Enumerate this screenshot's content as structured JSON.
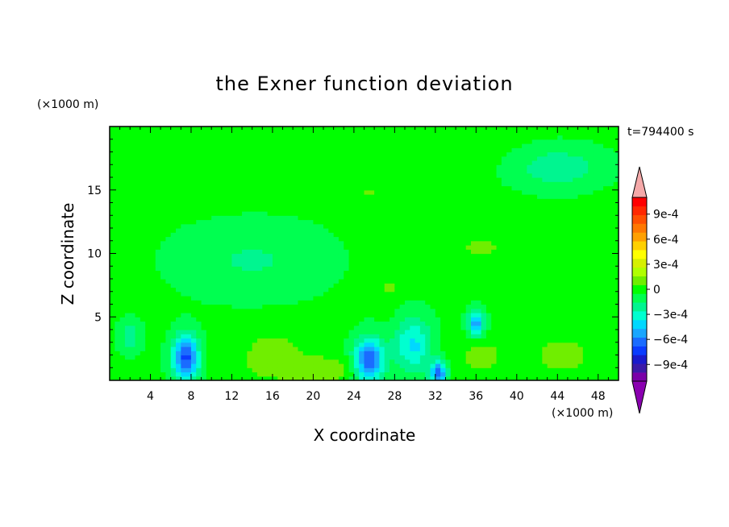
{
  "chart_data": {
    "type": "heatmap",
    "title": "the Exner function deviation",
    "xlabel": "X coordinate",
    "ylabel": "Z coordinate",
    "x_unit": "(×1000 m)",
    "y_unit": "(×1000 m)",
    "time_label": "t=794400 s",
    "xlim": [
      0,
      50
    ],
    "ylim": [
      0,
      20
    ],
    "x_ticks": [
      4,
      8,
      12,
      16,
      20,
      24,
      28,
      32,
      36,
      40,
      44,
      48
    ],
    "y_ticks": [
      5,
      10,
      15
    ],
    "colorbar": {
      "min": -0.0011,
      "max": 0.0011,
      "step": 0.0001,
      "tick_values": [
        0.0009,
        0.0006,
        0.0003,
        0,
        -0.0003,
        -0.0006,
        -0.0009
      ],
      "tick_labels": [
        "9e-4",
        "6e-4",
        "3e-4",
        "0",
        "−3e-4",
        "−6e-4",
        "−9e-4"
      ],
      "colors": [
        "#7a00a8",
        "#3b1aa8",
        "#1a1acc",
        "#0a3cff",
        "#1a6cff",
        "#19a6ff",
        "#00d8ff",
        "#00ffd0",
        "#00f590",
        "#00ff50",
        "#00ff00",
        "#70ee00",
        "#b0ff00",
        "#d6f000",
        "#ffff00",
        "#ffd000",
        "#ffa000",
        "#ff7800",
        "#ff5000",
        "#ff2800",
        "#ff0000"
      ],
      "over_color": "#f5a9a9",
      "under_color": "#8a00b0"
    },
    "field_background": -8e-05,
    "features": [
      {
        "x": 7.5,
        "z": 1.8,
        "value": -0.00065,
        "rx": 1.3,
        "rz": 1.8
      },
      {
        "x": 25.5,
        "z": 1.5,
        "value": -0.00065,
        "rx": 1.5,
        "rz": 1.8
      },
      {
        "x": 32.3,
        "z": 0.6,
        "value": -0.0006,
        "rx": 0.8,
        "rz": 0.9
      },
      {
        "x": 36.0,
        "z": 4.5,
        "value": -0.0005,
        "rx": 0.8,
        "rz": 1.0
      },
      {
        "x": 29.8,
        "z": 2.8,
        "value": -0.00035,
        "rx": 1.8,
        "rz": 2.2
      },
      {
        "x": 44.0,
        "z": 16.8,
        "value": -0.0002,
        "rx": 4.2,
        "rz": 1.6
      },
      {
        "x": 14.0,
        "z": 9.5,
        "value": -0.00013,
        "rx": 7.0,
        "rz": 2.8
      },
      {
        "x": 2.0,
        "z": 3.5,
        "value": -0.0002,
        "rx": 1.0,
        "rz": 1.2
      },
      {
        "x": 16.0,
        "z": 2.5,
        "value": 0.0001,
        "rx": 4.5,
        "rz": 1.8
      },
      {
        "x": 36.5,
        "z": 2.0,
        "value": 0.00012,
        "rx": 2.5,
        "rz": 1.5
      },
      {
        "x": 44.5,
        "z": 2.0,
        "value": 0.00012,
        "rx": 3.5,
        "rz": 1.8
      },
      {
        "x": 36.5,
        "z": 10.5,
        "value": 0.0001,
        "rx": 3.0,
        "rz": 1.2
      },
      {
        "x": 25.5,
        "z": 14.8,
        "value": 8e-05,
        "rx": 2.8,
        "rz": 1.0
      },
      {
        "x": 20.5,
        "z": 0.8,
        "value": 0.00015,
        "rx": 6.0,
        "rz": 1.0
      },
      {
        "x": 27.5,
        "z": 7.2,
        "value": 9e-05,
        "rx": 1.2,
        "rz": 1.5
      },
      {
        "x": 11.0,
        "z": 17.5,
        "value": 6e-05,
        "rx": 10.0,
        "rz": 2.5
      },
      {
        "x": 30.0,
        "z": 18.5,
        "value": 6e-05,
        "rx": 8.0,
        "rz": 1.8
      }
    ]
  }
}
